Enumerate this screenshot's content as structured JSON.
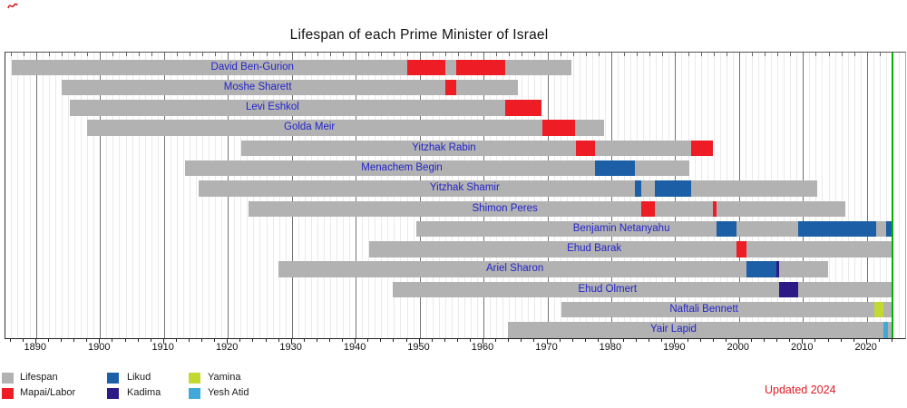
{
  "title": "Lifespan of each Prime Minister of Israel",
  "annotations": {
    "updated": "Updated 2024",
    "updated_color": "#e01b24"
  },
  "chart_data": {
    "type": "bar",
    "subtype": "gantt-lifespan-timeline",
    "title": "Lifespan of each Prime Minister of Israel",
    "xlabel": "",
    "ylabel": "",
    "xlim": [
      1885.2,
      2026
    ],
    "x_tick_labels": [
      "1890",
      "1900",
      "1910",
      "1920",
      "1930",
      "1940",
      "1950",
      "1960",
      "1970",
      "1980",
      "1990",
      "2000",
      "2010",
      "2020"
    ],
    "minor_tick_interval_years": 2,
    "grid": "vertical-every-year-with-darker-decades",
    "legend_position": "bottom-left",
    "present_year": 2024.05,
    "present_line_color": "#00b200",
    "name_text_color": "#2424cc",
    "grid_minor_color": "#eaeaea",
    "grid_major_color": "#737373",
    "parties": {
      "lifespan": {
        "label": "Lifespan",
        "color": "#b2b2b2"
      },
      "mapai_labor": {
        "label": "Mapai/Labor",
        "color": "#ee1c25"
      },
      "likud": {
        "label": "Likud",
        "color": "#1c5fa6"
      },
      "kadima": {
        "label": "Kadima",
        "color": "#2d1a85"
      },
      "yamina": {
        "label": "Yamina",
        "color": "#c4d832"
      },
      "yesh_atid": {
        "label": "Yesh Atid",
        "color": "#41a9da"
      }
    },
    "legend_columns": [
      [
        "lifespan",
        "mapai_labor"
      ],
      [
        "likud",
        "kadima"
      ],
      [
        "yamina",
        "yesh_atid"
      ]
    ],
    "ministers": [
      {
        "name": "David Ben-Gurion",
        "born": 1886.2,
        "died": 1973.75,
        "terms": [
          {
            "party": "mapai_labor",
            "start": 1948.05,
            "end": 1954.0
          },
          {
            "party": "mapai_labor",
            "start": 1955.75,
            "end": 1963.4
          }
        ]
      },
      {
        "name": "Moshe Sharett",
        "born": 1894.0,
        "died": 1965.35,
        "terms": [
          {
            "party": "mapai_labor",
            "start": 1954.0,
            "end": 1955.75
          }
        ]
      },
      {
        "name": "Levi Eshkol",
        "born": 1895.2,
        "died": 1969.1,
        "terms": [
          {
            "party": "mapai_labor",
            "start": 1963.4,
            "end": 1969.1
          }
        ]
      },
      {
        "name": "Golda Meir",
        "born": 1898.0,
        "died": 1978.85,
        "terms": [
          {
            "party": "mapai_labor",
            "start": 1969.2,
            "end": 1974.4
          }
        ]
      },
      {
        "name": "Yitzhak Rabin",
        "born": 1922.1,
        "died": 1995.85,
        "terms": [
          {
            "party": "mapai_labor",
            "start": 1974.4,
            "end": 1977.45
          },
          {
            "party": "mapai_labor",
            "start": 1992.5,
            "end": 1995.85
          }
        ]
      },
      {
        "name": "Menachem Begin",
        "born": 1913.3,
        "died": 1992.2,
        "terms": [
          {
            "party": "likud",
            "start": 1977.45,
            "end": 1983.75
          }
        ]
      },
      {
        "name": "Yitzhak Shamir",
        "born": 1915.4,
        "died": 2012.3,
        "terms": [
          {
            "party": "likud",
            "start": 1983.75,
            "end": 1984.75
          },
          {
            "party": "likud",
            "start": 1986.8,
            "end": 1992.5
          }
        ]
      },
      {
        "name": "Shimon Peres",
        "born": 1923.2,
        "died": 2016.6,
        "terms": [
          {
            "party": "mapai_labor",
            "start": 1984.75,
            "end": 1986.8
          },
          {
            "party": "mapai_labor",
            "start": 1995.85,
            "end": 1996.5
          }
        ]
      },
      {
        "name": "Benjamin Netanyahu",
        "born": 1949.55,
        "died": null,
        "terms": [
          {
            "party": "likud",
            "start": 1996.5,
            "end": 1999.55
          },
          {
            "party": "likud",
            "start": 2009.25,
            "end": 2021.45
          },
          {
            "party": "likud",
            "start": 2022.95,
            "end": 2024.05
          }
        ]
      },
      {
        "name": "Ehud Barak",
        "born": 1942.1,
        "died": null,
        "terms": [
          {
            "party": "mapai_labor",
            "start": 1999.55,
            "end": 2001.2
          }
        ]
      },
      {
        "name": "Ariel Sharon",
        "born": 1927.9,
        "died": 2014.0,
        "terms": [
          {
            "party": "likud",
            "start": 2001.2,
            "end": 2005.9
          },
          {
            "party": "kadima",
            "start": 2005.9,
            "end": 2006.3
          }
        ]
      },
      {
        "name": "Ehud Olmert",
        "born": 1945.75,
        "died": null,
        "terms": [
          {
            "party": "kadima",
            "start": 2006.3,
            "end": 2009.25
          }
        ]
      },
      {
        "name": "Naftali Bennett",
        "born": 1972.2,
        "died": null,
        "terms": [
          {
            "party": "yamina",
            "start": 2021.2,
            "end": 2022.55
          }
        ]
      },
      {
        "name": "Yair Lapid",
        "born": 1963.85,
        "died": null,
        "terms": [
          {
            "party": "yesh_atid",
            "start": 2022.55,
            "end": 2023.25
          }
        ]
      }
    ]
  }
}
